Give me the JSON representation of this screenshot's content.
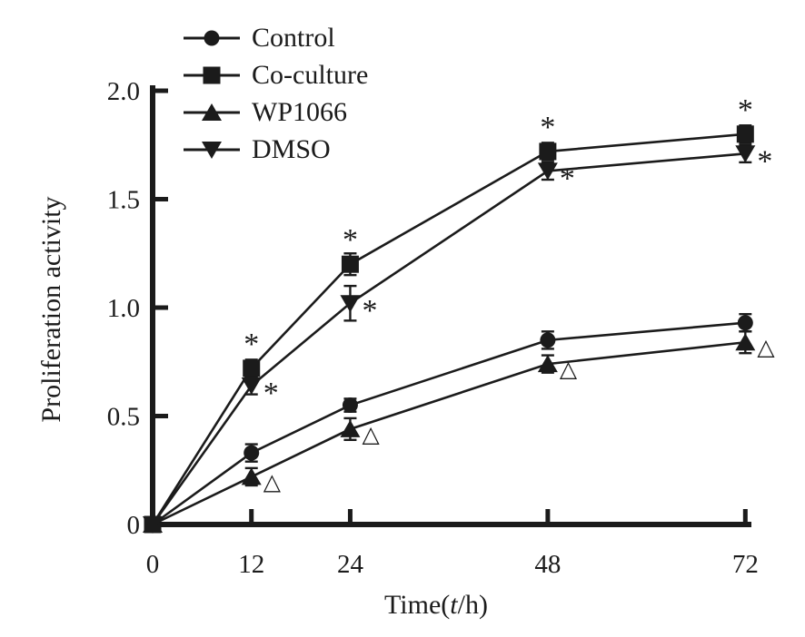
{
  "chart_data": {
    "type": "line",
    "title": "",
    "ylabel": "Proliferation activity",
    "xlabel": "Time(t/h)",
    "xlabel_parts": {
      "prefix": "Time(",
      "italic": "t",
      "suffix": "/h)"
    },
    "x": [
      0,
      12,
      24,
      48,
      72
    ],
    "x_tick_labels": [
      "0",
      "12",
      "24",
      "48",
      "72"
    ],
    "y_tick_values": [
      0,
      0.5,
      1.0,
      1.5,
      2.0
    ],
    "y_tick_labels": [
      "0",
      "0.5",
      "1.0",
      "1.5",
      "2.0"
    ],
    "xlim": [
      0,
      72
    ],
    "ylim": [
      0,
      2.0
    ],
    "grid": false,
    "legend_position": "top-left",
    "colors": {
      "ink": "#1b1b1b",
      "background": "#ffffff"
    },
    "series": [
      {
        "name": "Control",
        "marker": "circle",
        "values": [
          0,
          0.33,
          0.55,
          0.85,
          0.93
        ],
        "errors": [
          0,
          0.04,
          0.03,
          0.04,
          0.04
        ],
        "annotation": null
      },
      {
        "name": "Co-culture",
        "marker": "square",
        "values": [
          0,
          0.72,
          1.2,
          1.72,
          1.8
        ],
        "errors": [
          0,
          0.04,
          0.05,
          0.04,
          0.04
        ],
        "annotation": {
          "symbol": "*",
          "position": "above"
        }
      },
      {
        "name": "WP1066",
        "marker": "triangle-up",
        "values": [
          0,
          0.22,
          0.44,
          0.74,
          0.84
        ],
        "errors": [
          0,
          0.04,
          0.05,
          0.04,
          0.05
        ],
        "annotation": {
          "symbol": "△",
          "position": "right"
        }
      },
      {
        "name": "DMSO",
        "marker": "triangle-down",
        "values": [
          0,
          0.64,
          1.02,
          1.63,
          1.71
        ],
        "errors": [
          0,
          0.04,
          0.08,
          0.04,
          0.04
        ],
        "annotation": {
          "symbol": "*",
          "position": "right-below"
        }
      }
    ]
  }
}
